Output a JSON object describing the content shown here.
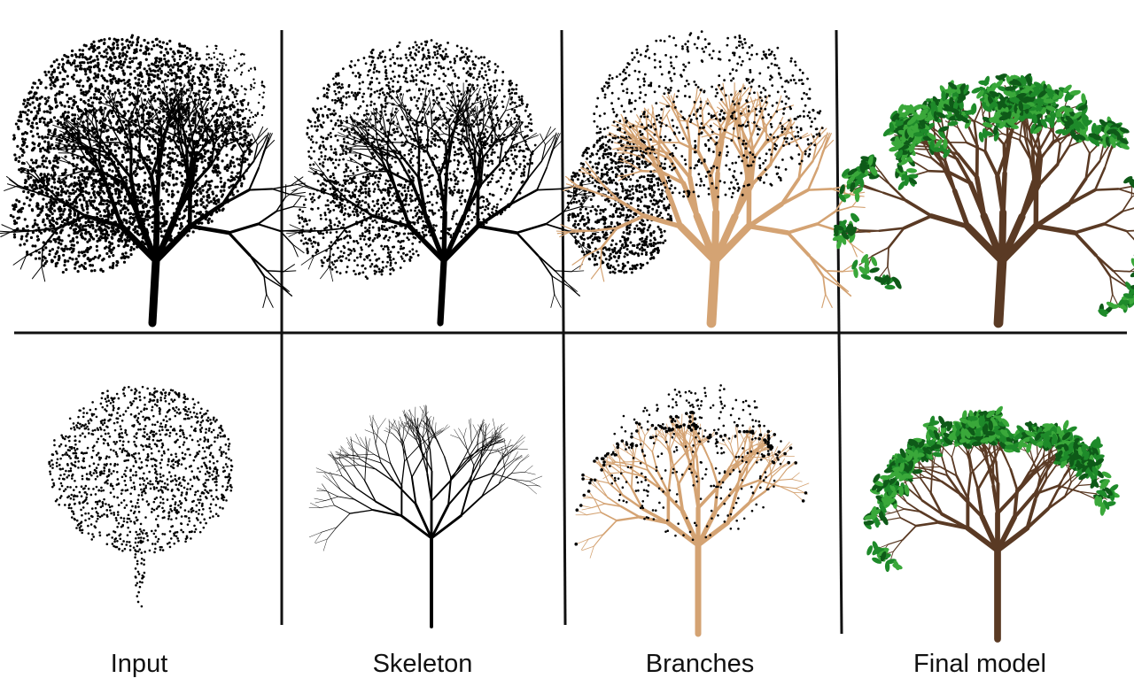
{
  "captions": {
    "input": "Input",
    "skeleton": "Skeleton",
    "branches": "Branches",
    "final_model": "Final model"
  },
  "colors": {
    "ink": "#000000",
    "bark_branches": "#d4a373",
    "bark_final": "#5a3a24",
    "foliage_light": "#3aa83a",
    "foliage_mid": "#1e8a2a",
    "foliage_dark": "#0e5a18",
    "divider": "#111111"
  }
}
